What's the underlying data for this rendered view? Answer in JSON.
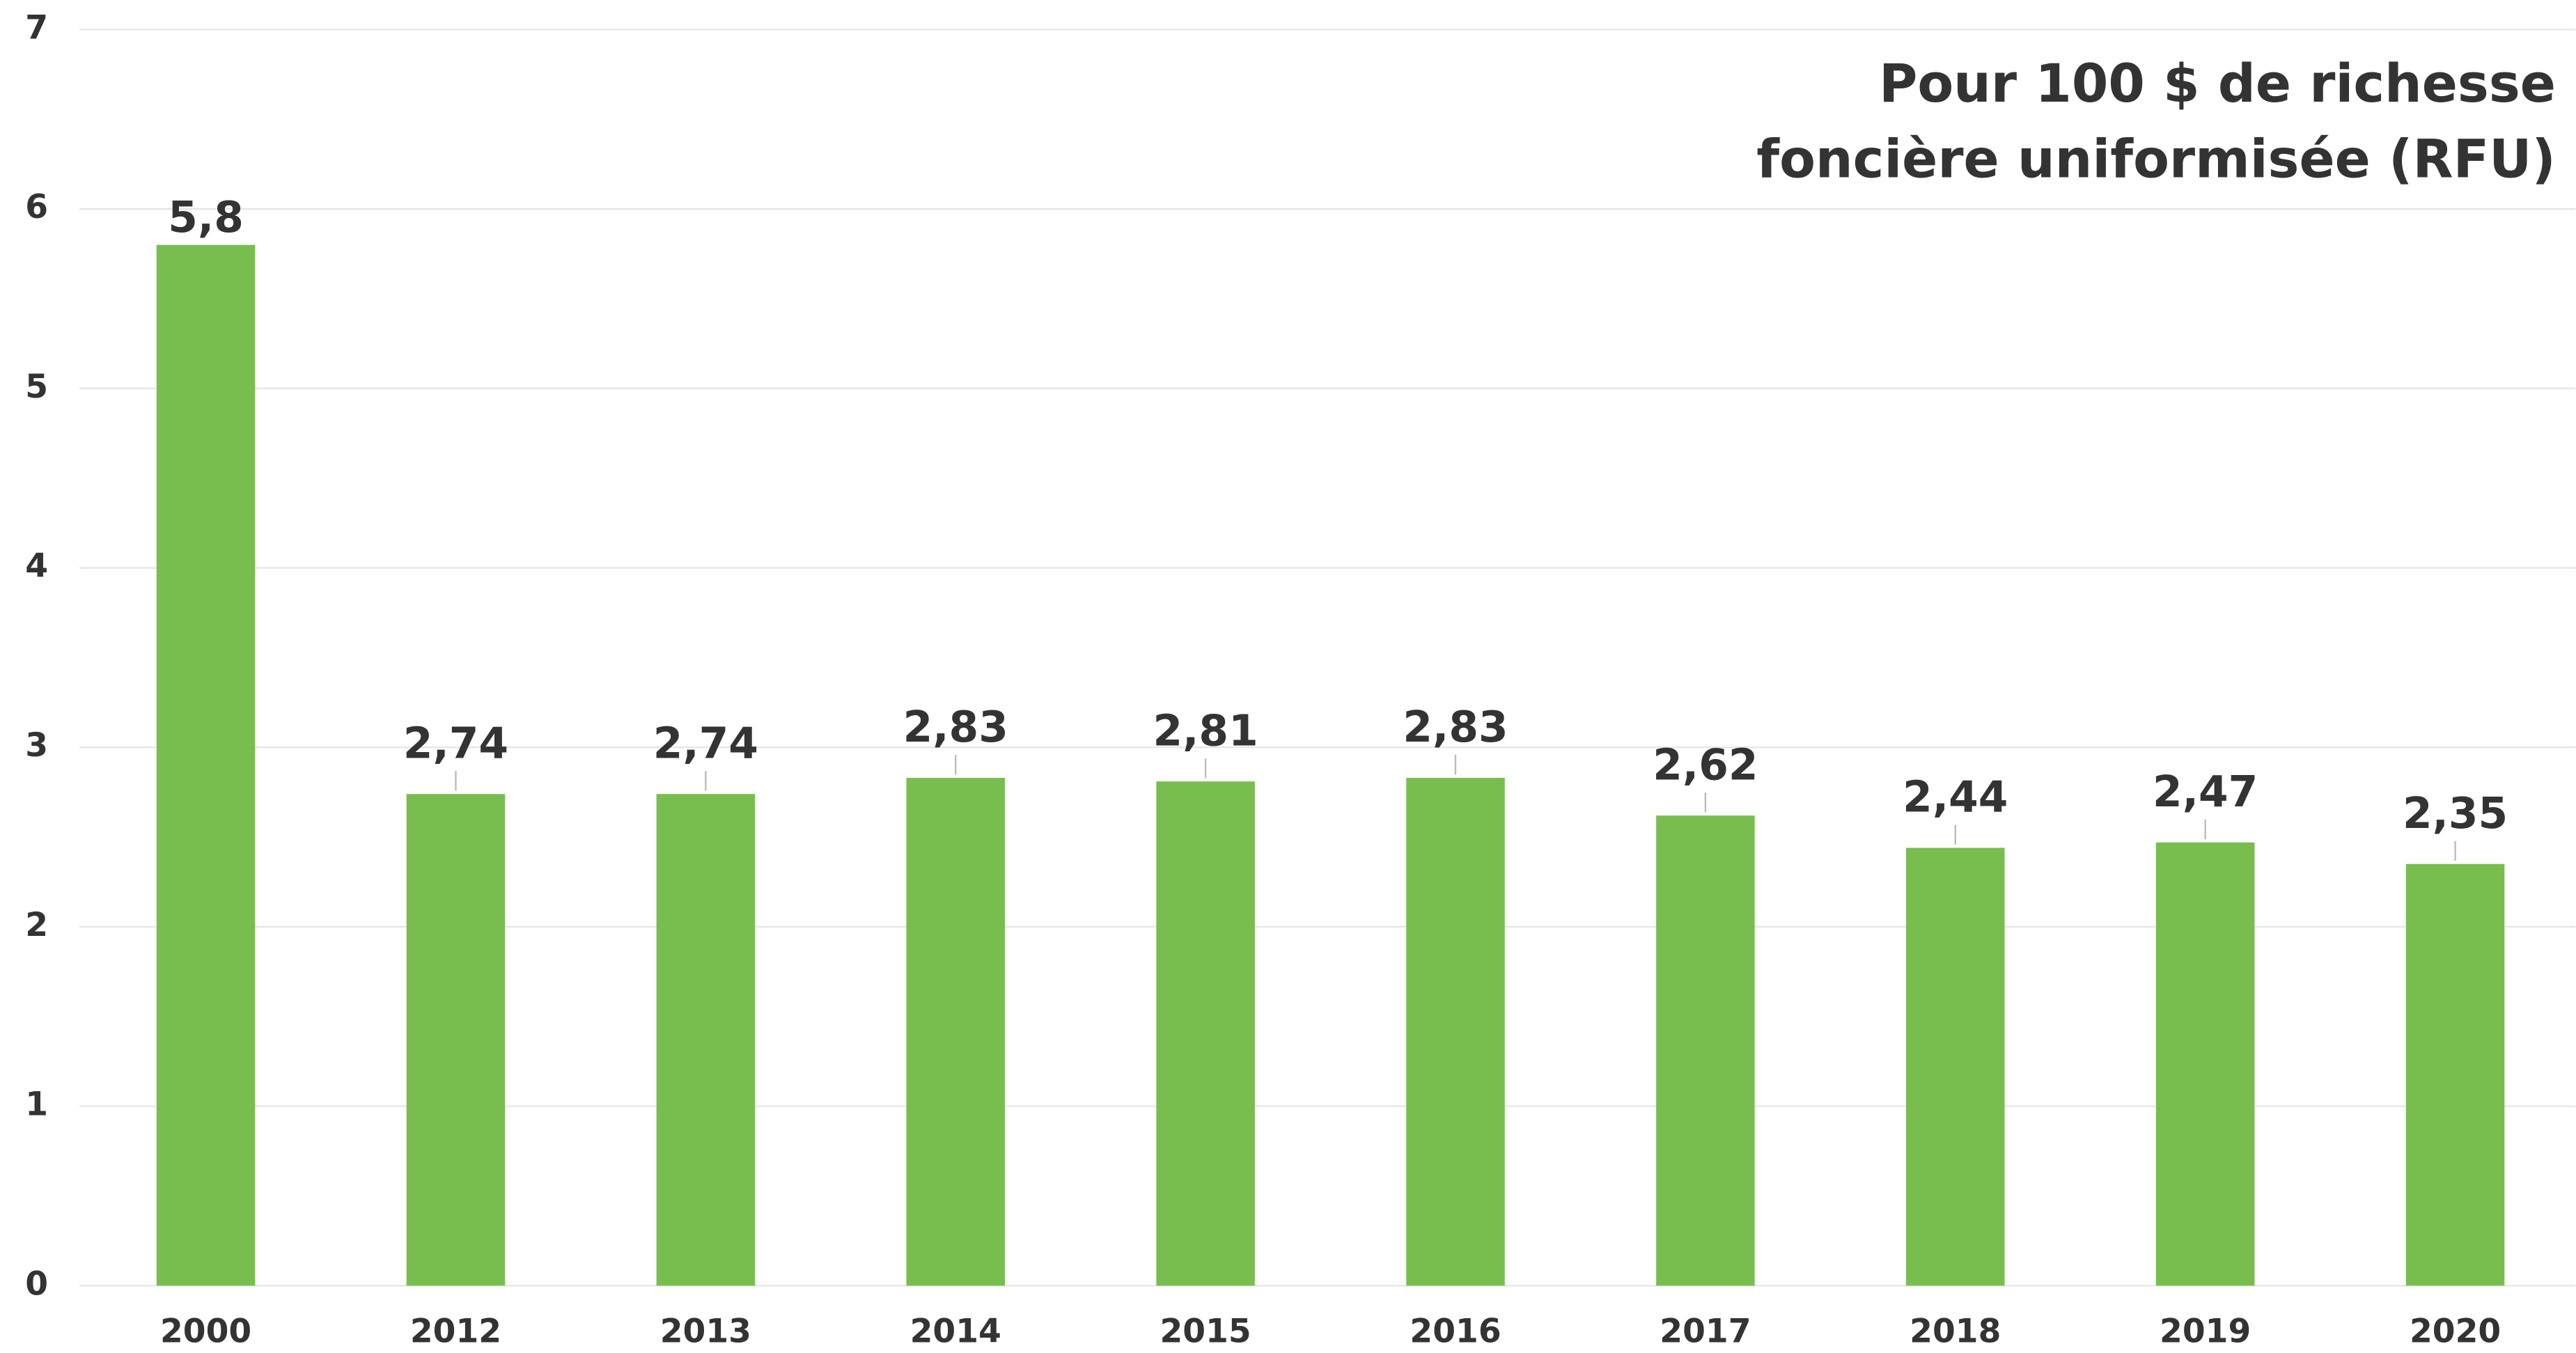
{
  "chart_data": {
    "type": "bar",
    "title": [
      "Pour 100 $ de richesse",
      "foncière uniformisée (RFU)"
    ],
    "categories": [
      "2000",
      "2012",
      "2013",
      "2014",
      "2015",
      "2016",
      "2017",
      "2018",
      "2019",
      "2020"
    ],
    "values": [
      5.8,
      2.74,
      2.74,
      2.83,
      2.81,
      2.83,
      2.62,
      2.44,
      2.47,
      2.35
    ],
    "value_labels": [
      "5,8",
      "2,74",
      "2,74",
      "2,83",
      "2,81",
      "2,83",
      "2,62",
      "2,44",
      "2,47",
      "2,35"
    ],
    "color": "#78be4e",
    "ylim": [
      0,
      7
    ],
    "yticks": [
      0,
      1,
      2,
      3,
      4,
      5,
      6,
      7
    ],
    "grid": true
  }
}
